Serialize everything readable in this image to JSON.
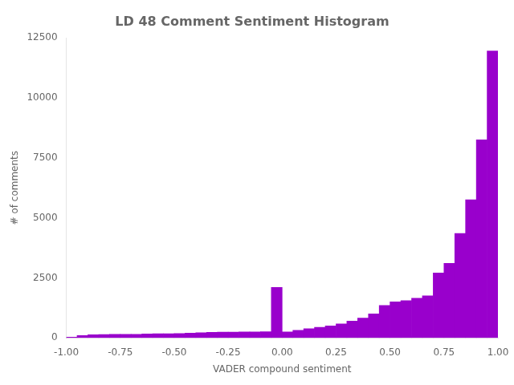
{
  "chart_data": {
    "type": "histogram",
    "title": "LD 48 Comment Sentiment Histogram",
    "xlabel": "VADER compound sentiment",
    "ylabel": "# of comments",
    "color": "#9900cc",
    "bins": [
      -1.0,
      -0.95,
      -0.9,
      -0.85,
      -0.8,
      -0.75,
      -0.7,
      -0.65,
      -0.6,
      -0.55,
      -0.5,
      -0.45,
      -0.4,
      -0.35,
      -0.3,
      -0.25,
      -0.2,
      -0.15,
      -0.1,
      -0.05,
      0.0,
      0.05,
      0.1,
      0.15,
      0.2,
      0.25,
      0.3,
      0.35,
      0.4,
      0.45,
      0.5,
      0.55,
      0.6,
      0.65,
      0.7,
      0.75,
      0.8,
      0.85,
      0.9,
      0.95,
      1.0
    ],
    "counts": [
      30,
      100,
      130,
      140,
      150,
      145,
      150,
      160,
      175,
      175,
      180,
      195,
      210,
      230,
      240,
      240,
      245,
      250,
      255,
      2100,
      250,
      310,
      380,
      440,
      500,
      580,
      700,
      820,
      1000,
      1350,
      1500,
      1550,
      1650,
      1750,
      2700,
      3100,
      4350,
      5750,
      8250,
      11950
    ],
    "xlim": [
      -1.0,
      1.0
    ],
    "ylim": [
      0,
      12500
    ],
    "xticks": [
      {
        "value": -1.0,
        "label": "-1.00"
      },
      {
        "value": -0.75,
        "label": "-0.75"
      },
      {
        "value": -0.5,
        "label": "-0.50"
      },
      {
        "value": -0.25,
        "label": "-0.25"
      },
      {
        "value": 0.0,
        "label": "0.00"
      },
      {
        "value": 0.25,
        "label": "0.25"
      },
      {
        "value": 0.5,
        "label": "0.50"
      },
      {
        "value": 0.75,
        "label": "0.75"
      },
      {
        "value": 1.0,
        "label": "1.00"
      }
    ],
    "yticks": [
      0,
      2500,
      5000,
      7500,
      10000,
      12500
    ],
    "grid": false
  }
}
